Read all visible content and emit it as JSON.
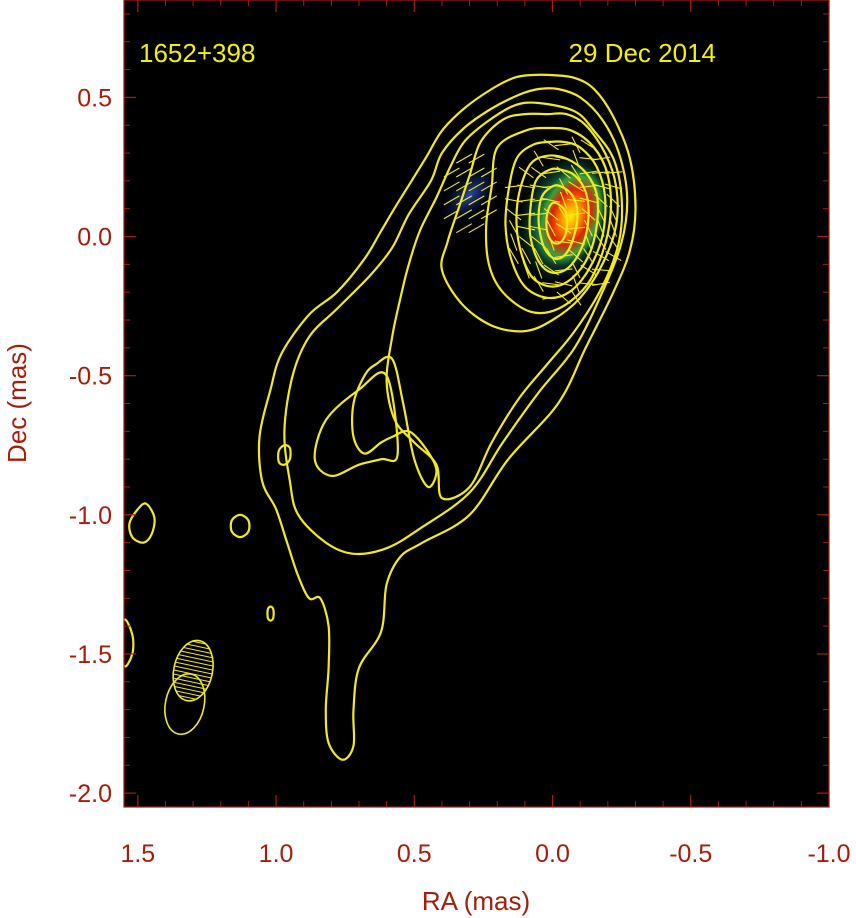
{
  "chart_data": {
    "type": "contour",
    "source_name": "1652+398",
    "epoch": "29 Dec 2014",
    "xlabel": "RA (mas)",
    "ylabel": "Dec (mas)",
    "xlim": [
      1.55,
      -1.0
    ],
    "ylim": [
      -2.05,
      0.85
    ],
    "x_ticks": [
      {
        "value": 1.5,
        "label": "1.5"
      },
      {
        "value": 1.0,
        "label": "1.0"
      },
      {
        "value": 0.5,
        "label": "0.5"
      },
      {
        "value": 0.0,
        "label": "0.0"
      },
      {
        "value": -0.5,
        "label": "-0.5"
      },
      {
        "value": -1.0,
        "label": "-1.0"
      }
    ],
    "y_ticks": [
      {
        "value": 0.5,
        "label": "0.5"
      },
      {
        "value": 0.0,
        "label": "0.0"
      },
      {
        "value": -0.5,
        "label": "-0.5"
      },
      {
        "value": -1.0,
        "label": "-1.0"
      },
      {
        "value": -1.5,
        "label": "-1.5"
      },
      {
        "value": -2.0,
        "label": "-2.0"
      }
    ],
    "background": "#000000",
    "contour_color": "#f2ea1c",
    "axis_color": "#a81c0a",
    "annotation_color": "#f5f000",
    "beams": [
      {
        "x": 1.3,
        "y": -1.56,
        "major": 0.22,
        "minor": 0.14,
        "fill": "hatched"
      },
      {
        "x": 1.33,
        "y": -1.68,
        "major": 0.22,
        "minor": 0.14,
        "fill": "outline"
      }
    ],
    "polarized_intensity_peak": {
      "x": -0.05,
      "y": 0.07
    },
    "contours": [
      {
        "level": 1,
        "points": [
          [
            0.08,
            0.58
          ],
          [
            0.14,
            0.57
          ],
          [
            0.22,
            0.53
          ],
          [
            0.32,
            0.46
          ],
          [
            0.4,
            0.38
          ],
          [
            0.46,
            0.28
          ],
          [
            0.56,
            0.12
          ],
          [
            0.62,
            0.02
          ],
          [
            0.68,
            -0.08
          ],
          [
            0.78,
            -0.2
          ],
          [
            0.88,
            -0.28
          ],
          [
            0.98,
            -0.42
          ],
          [
            1.02,
            -0.55
          ],
          [
            1.06,
            -0.72
          ],
          [
            1.05,
            -0.88
          ],
          [
            1.0,
            -0.98
          ],
          [
            0.96,
            -1.1
          ],
          [
            0.92,
            -1.22
          ],
          [
            0.88,
            -1.3
          ],
          [
            0.84,
            -1.3
          ],
          [
            0.81,
            -1.4
          ],
          [
            0.81,
            -1.55
          ],
          [
            0.82,
            -1.7
          ],
          [
            0.81,
            -1.82
          ],
          [
            0.76,
            -1.88
          ],
          [
            0.72,
            -1.83
          ],
          [
            0.72,
            -1.7
          ],
          [
            0.7,
            -1.55
          ],
          [
            0.62,
            -1.42
          ],
          [
            0.6,
            -1.25
          ],
          [
            0.55,
            -1.15
          ],
          [
            0.47,
            -1.1
          ],
          [
            0.3,
            -1.0
          ],
          [
            0.16,
            -0.8
          ],
          [
            -0.02,
            -0.6
          ],
          [
            -0.12,
            -0.4
          ],
          [
            -0.22,
            -0.2
          ],
          [
            -0.28,
            -0.05
          ],
          [
            -0.3,
            0.1
          ],
          [
            -0.28,
            0.28
          ],
          [
            -0.22,
            0.43
          ],
          [
            -0.15,
            0.53
          ],
          [
            -0.08,
            0.57
          ],
          [
            0.0,
            0.58
          ]
        ]
      },
      {
        "level": 2,
        "points": [
          [
            0.05,
            0.53
          ],
          [
            0.12,
            0.51
          ],
          [
            0.22,
            0.46
          ],
          [
            0.32,
            0.39
          ],
          [
            0.4,
            0.3
          ],
          [
            0.44,
            0.2
          ],
          [
            0.52,
            0.08
          ],
          [
            0.58,
            -0.04
          ],
          [
            0.66,
            -0.14
          ],
          [
            0.78,
            -0.26
          ],
          [
            0.88,
            -0.36
          ],
          [
            0.94,
            -0.5
          ],
          [
            0.97,
            -0.7
          ],
          [
            0.95,
            -0.88
          ],
          [
            0.92,
            -1.0
          ],
          [
            0.82,
            -1.1
          ],
          [
            0.72,
            -1.14
          ],
          [
            0.6,
            -1.12
          ],
          [
            0.48,
            -1.05
          ],
          [
            0.3,
            -0.92
          ],
          [
            0.18,
            -0.74
          ],
          [
            0.05,
            -0.56
          ],
          [
            -0.08,
            -0.4
          ],
          [
            -0.18,
            -0.2
          ],
          [
            -0.25,
            -0.02
          ],
          [
            -0.27,
            0.14
          ],
          [
            -0.24,
            0.3
          ],
          [
            -0.18,
            0.42
          ],
          [
            -0.1,
            0.5
          ],
          [
            -0.02,
            0.53
          ]
        ]
      },
      {
        "level": 3,
        "points": [
          [
            0.05,
            0.48
          ],
          [
            0.14,
            0.47
          ],
          [
            0.24,
            0.41
          ],
          [
            0.32,
            0.34
          ],
          [
            0.37,
            0.25
          ],
          [
            0.42,
            0.14
          ],
          [
            0.48,
            0.02
          ],
          [
            0.52,
            -0.1
          ],
          [
            0.55,
            -0.22
          ],
          [
            0.58,
            -0.36
          ],
          [
            0.6,
            -0.52
          ],
          [
            0.57,
            -0.66
          ],
          [
            0.5,
            -0.74
          ],
          [
            0.42,
            -0.82
          ],
          [
            0.4,
            -0.94
          ],
          [
            0.3,
            -0.9
          ],
          [
            0.22,
            -0.74
          ],
          [
            0.12,
            -0.58
          ],
          [
            0.02,
            -0.46
          ],
          [
            -0.08,
            -0.34
          ],
          [
            -0.18,
            -0.18
          ],
          [
            -0.24,
            -0.02
          ],
          [
            -0.25,
            0.14
          ],
          [
            -0.22,
            0.28
          ],
          [
            -0.15,
            0.38
          ],
          [
            -0.08,
            0.45
          ]
        ]
      },
      {
        "level": 4,
        "points": [
          [
            0.02,
            0.44
          ],
          [
            0.1,
            0.44
          ],
          [
            0.18,
            0.42
          ],
          [
            0.26,
            0.34
          ],
          [
            0.3,
            0.22
          ],
          [
            0.34,
            0.1
          ],
          [
            0.38,
            -0.02
          ],
          [
            0.4,
            -0.12
          ],
          [
            0.33,
            -0.24
          ],
          [
            0.22,
            -0.32
          ],
          [
            0.1,
            -0.34
          ],
          [
            0.0,
            -0.3
          ],
          [
            -0.1,
            -0.22
          ],
          [
            -0.18,
            -0.1
          ],
          [
            -0.23,
            0.04
          ],
          [
            -0.23,
            0.18
          ],
          [
            -0.19,
            0.3
          ],
          [
            -0.12,
            0.4
          ],
          [
            -0.05,
            0.44
          ]
        ]
      },
      {
        "level": 5,
        "points": [
          [
            0.02,
            0.39
          ],
          [
            0.1,
            0.38
          ],
          [
            0.2,
            0.32
          ],
          [
            0.22,
            0.18
          ],
          [
            0.24,
            0.04
          ],
          [
            0.23,
            -0.1
          ],
          [
            0.18,
            -0.2
          ],
          [
            0.08,
            -0.27
          ],
          [
            -0.02,
            -0.26
          ],
          [
            -0.12,
            -0.18
          ],
          [
            -0.18,
            -0.06
          ],
          [
            -0.21,
            0.08
          ],
          [
            -0.2,
            0.22
          ],
          [
            -0.15,
            0.32
          ],
          [
            -0.07,
            0.38
          ]
        ]
      },
      {
        "level": 6,
        "points": [
          [
            0.01,
            0.34
          ],
          [
            0.07,
            0.33
          ],
          [
            0.13,
            0.28
          ],
          [
            0.16,
            0.16
          ],
          [
            0.17,
            0.04
          ],
          [
            0.15,
            -0.08
          ],
          [
            0.1,
            -0.18
          ],
          [
            0.02,
            -0.22
          ],
          [
            -0.06,
            -0.2
          ],
          [
            -0.13,
            -0.12
          ],
          [
            -0.18,
            0.0
          ],
          [
            -0.19,
            0.14
          ],
          [
            -0.16,
            0.25
          ],
          [
            -0.1,
            0.32
          ],
          [
            -0.04,
            0.34
          ]
        ]
      },
      {
        "level": 7,
        "points": [
          [
            0.02,
            0.29
          ],
          [
            0.08,
            0.26
          ],
          [
            0.12,
            0.16
          ],
          [
            0.13,
            0.04
          ],
          [
            0.11,
            -0.07
          ],
          [
            0.07,
            -0.15
          ],
          [
            0.0,
            -0.18
          ],
          [
            -0.07,
            -0.15
          ],
          [
            -0.13,
            -0.07
          ],
          [
            -0.16,
            0.04
          ],
          [
            -0.16,
            0.15
          ],
          [
            -0.12,
            0.23
          ],
          [
            -0.05,
            0.28
          ]
        ]
      },
      {
        "level": 8,
        "points": [
          [
            0.01,
            0.24
          ],
          [
            0.06,
            0.2
          ],
          [
            0.08,
            0.1
          ],
          [
            0.08,
            0.0
          ],
          [
            0.05,
            -0.09
          ],
          [
            0.0,
            -0.13
          ],
          [
            -0.06,
            -0.11
          ],
          [
            -0.11,
            -0.03
          ],
          [
            -0.13,
            0.07
          ],
          [
            -0.12,
            0.16
          ],
          [
            -0.08,
            0.22
          ],
          [
            -0.03,
            0.24
          ]
        ]
      },
      {
        "level": 9,
        "points": [
          [
            0.0,
            0.18
          ],
          [
            0.04,
            0.14
          ],
          [
            0.05,
            0.05
          ],
          [
            0.03,
            -0.04
          ],
          [
            -0.01,
            -0.08
          ],
          [
            -0.05,
            -0.06
          ],
          [
            -0.08,
            0.01
          ],
          [
            -0.09,
            0.09
          ],
          [
            -0.07,
            0.15
          ],
          [
            -0.03,
            0.18
          ]
        ]
      },
      {
        "level": 10,
        "points": [
          [
            0.0,
            0.12
          ],
          [
            0.02,
            0.08
          ],
          [
            0.02,
            0.02
          ],
          [
            0.0,
            -0.02
          ],
          [
            -0.03,
            -0.02
          ],
          [
            -0.05,
            0.02
          ],
          [
            -0.05,
            0.08
          ],
          [
            -0.03,
            0.11
          ]
        ]
      },
      {
        "level": 3,
        "points": [
          [
            0.58,
            -0.44
          ],
          [
            0.64,
            -0.46
          ],
          [
            0.68,
            -0.5
          ],
          [
            0.72,
            -0.6
          ],
          [
            0.72,
            -0.72
          ],
          [
            0.68,
            -0.78
          ],
          [
            0.62,
            -0.74
          ],
          [
            0.58,
            -0.72
          ],
          [
            0.52,
            -0.7
          ],
          [
            0.46,
            -0.76
          ],
          [
            0.42,
            -0.84
          ],
          [
            0.45,
            -0.9
          ],
          [
            0.5,
            -0.8
          ],
          [
            0.54,
            -0.6
          ]
        ]
      },
      {
        "level": 2,
        "points": [
          [
            0.6,
            -0.5
          ],
          [
            0.7,
            -0.55
          ],
          [
            0.82,
            -0.66
          ],
          [
            0.86,
            -0.8
          ],
          [
            0.8,
            -0.86
          ],
          [
            0.7,
            -0.82
          ],
          [
            0.62,
            -0.8
          ],
          [
            0.56,
            -0.78
          ]
        ]
      },
      {
        "level": 1,
        "points": [
          [
            1.47,
            -0.96
          ],
          [
            1.5,
            -0.98
          ],
          [
            1.53,
            -1.03
          ],
          [
            1.52,
            -1.08
          ],
          [
            1.48,
            -1.1
          ],
          [
            1.45,
            -1.07
          ],
          [
            1.44,
            -1.01
          ]
        ]
      },
      {
        "level": 1,
        "points": [
          [
            1.13,
            -1.0
          ],
          [
            1.16,
            -1.02
          ],
          [
            1.16,
            -1.06
          ],
          [
            1.13,
            -1.08
          ],
          [
            1.1,
            -1.06
          ],
          [
            1.1,
            -1.02
          ]
        ]
      },
      {
        "level": 1,
        "points": [
          [
            0.97,
            -0.75
          ],
          [
            0.99,
            -0.77
          ],
          [
            0.99,
            -0.81
          ],
          [
            0.97,
            -0.82
          ],
          [
            0.95,
            -0.8
          ],
          [
            0.95,
            -0.76
          ]
        ]
      },
      {
        "level": 1,
        "points": [
          [
            1.02,
            -1.33
          ],
          [
            1.03,
            -1.34
          ],
          [
            1.03,
            -1.37
          ],
          [
            1.02,
            -1.38
          ],
          [
            1.01,
            -1.37
          ],
          [
            1.01,
            -1.34
          ]
        ]
      },
      {
        "level": 1,
        "points": [
          [
            1.55,
            -1.38
          ],
          [
            1.52,
            -1.43
          ],
          [
            1.52,
            -1.5
          ],
          [
            1.55,
            -1.54
          ]
        ]
      }
    ]
  }
}
